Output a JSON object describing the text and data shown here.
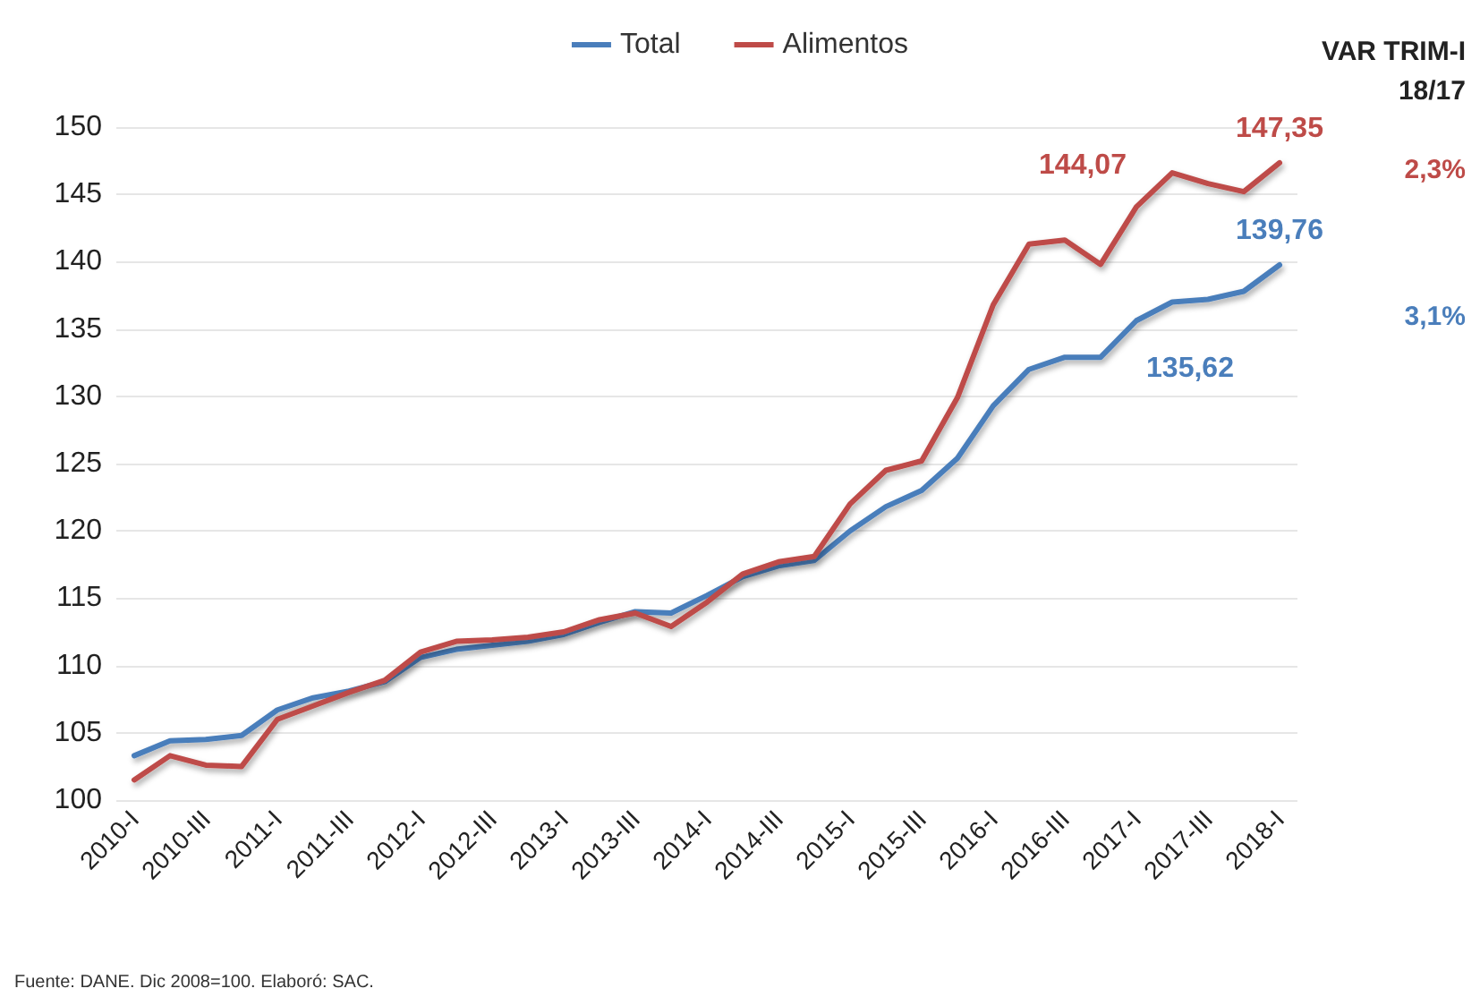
{
  "chart_data": {
    "type": "line",
    "categories": [
      "2010-I",
      null,
      "2010-III",
      null,
      "2011-I",
      null,
      "2011-III",
      null,
      "2012-I",
      null,
      "2012-III",
      null,
      "2013-I",
      null,
      "2013-III",
      null,
      "2014-I",
      null,
      "2014-III",
      null,
      "2015-I",
      null,
      "2015-III",
      null,
      "2016-I",
      null,
      "2016-III",
      null,
      "2017-I",
      null,
      "2017-III",
      null,
      "2018-I"
    ],
    "series": [
      {
        "name": "Total",
        "color": "#4a7ebb",
        "values": [
          103.3,
          104.4,
          104.5,
          104.8,
          106.7,
          107.6,
          108.1,
          108.8,
          110.6,
          111.2,
          111.5,
          111.8,
          112.3,
          113.2,
          114.0,
          113.9,
          115.2,
          116.6,
          117.4,
          117.8,
          120.0,
          121.8,
          123.0,
          125.4,
          129.3,
          132.0,
          132.9,
          132.9,
          135.62,
          137.0,
          137.2,
          137.8,
          139.76
        ],
        "value_labels": [
          null,
          null,
          null,
          null,
          null,
          null,
          null,
          null,
          null,
          null,
          null,
          null,
          null,
          null,
          null,
          null,
          null,
          null,
          null,
          null,
          null,
          null,
          null,
          null,
          null,
          null,
          null,
          null,
          "135,62",
          null,
          null,
          null,
          "139,76"
        ]
      },
      {
        "name": "Alimentos",
        "color": "#be4b48",
        "values": [
          101.5,
          103.3,
          102.6,
          102.5,
          106.0,
          107.0,
          108.0,
          108.9,
          111.0,
          111.8,
          111.9,
          112.1,
          112.5,
          113.4,
          113.9,
          112.9,
          114.7,
          116.8,
          117.7,
          118.1,
          122.0,
          124.5,
          125.2,
          129.9,
          136.8,
          141.3,
          141.6,
          139.8,
          144.07,
          146.6,
          145.8,
          145.2,
          147.35
        ],
        "value_labels": [
          null,
          null,
          null,
          null,
          null,
          null,
          null,
          null,
          null,
          null,
          null,
          null,
          null,
          null,
          null,
          null,
          null,
          null,
          null,
          null,
          null,
          null,
          null,
          null,
          null,
          null,
          null,
          null,
          "144,07",
          null,
          null,
          null,
          "147,35"
        ]
      }
    ],
    "ylim": [
      100,
      150
    ],
    "yticks": [
      100,
      105,
      110,
      115,
      120,
      125,
      130,
      135,
      140,
      145,
      150
    ],
    "grid": "y",
    "legend": "top",
    "marker": "none",
    "line_style": "solid",
    "annotations": [
      "VAR TRIM-I\n18/17",
      "2,3%",
      "3,1%",
      "Fuente: DANE. Dic 2008=100. Elaboró: SAC."
    ]
  }
}
